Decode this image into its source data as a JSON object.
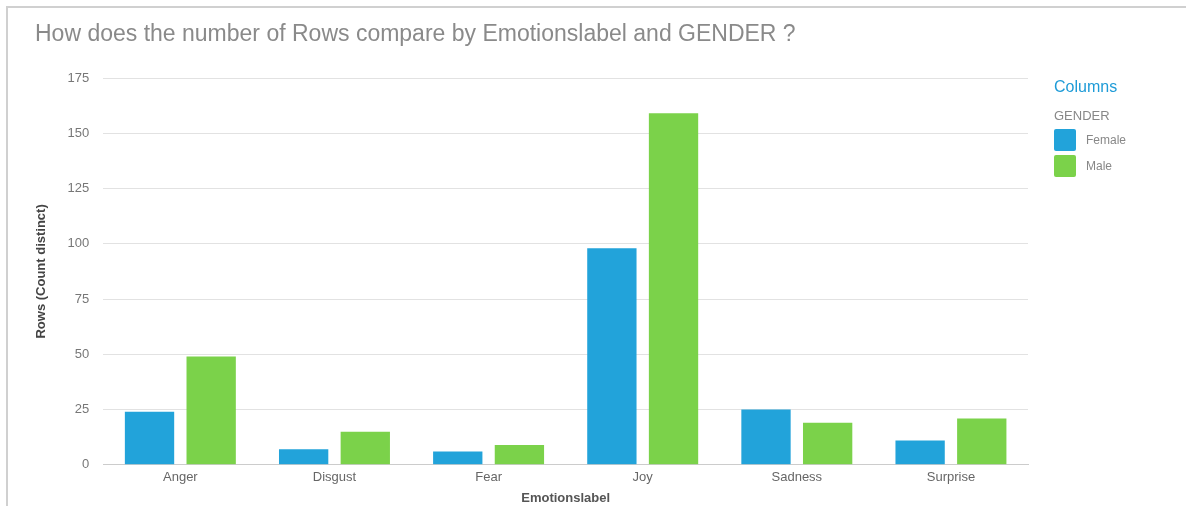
{
  "chart_data": {
    "type": "bar",
    "title": "How does the number of Rows compare by Emotionslabel and GENDER ?",
    "xlabel": "Emotionslabel",
    "ylabel": "Rows (Count distinct)",
    "legend_title": "GENDER",
    "annotations": [
      "Columns"
    ],
    "categories": [
      "Anger",
      "Disgust",
      "Fear",
      "Joy",
      "Sadness",
      "Surprise"
    ],
    "series": [
      {
        "name": "Female",
        "color": "#22a3da",
        "values": [
          24,
          7,
          6,
          98,
          25,
          11
        ]
      },
      {
        "name": "Male",
        "color": "#7bd24a",
        "values": [
          49,
          15,
          9,
          159,
          19,
          21
        ]
      }
    ],
    "ylim": [
      0,
      175
    ],
    "yticks": [
      0,
      25,
      50,
      75,
      100,
      125,
      150,
      175
    ],
    "grid": "y",
    "legend": "top right"
  }
}
